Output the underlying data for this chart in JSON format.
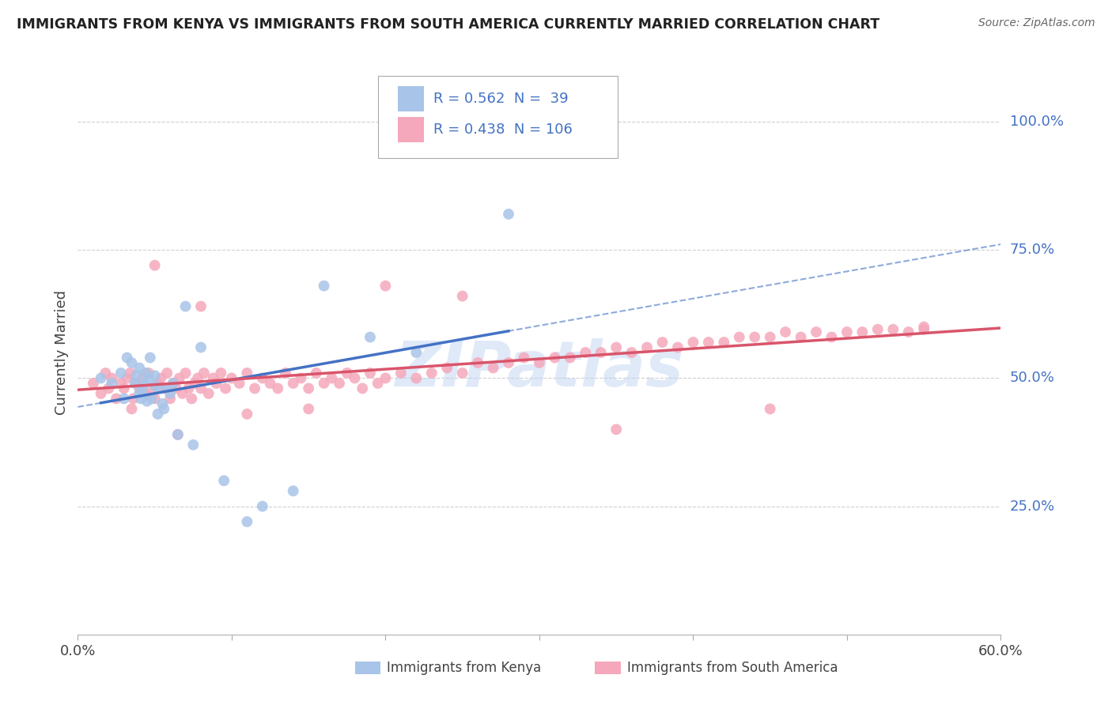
{
  "title": "IMMIGRANTS FROM KENYA VS IMMIGRANTS FROM SOUTH AMERICA CURRENTLY MARRIED CORRELATION CHART",
  "source": "Source: ZipAtlas.com",
  "ylabel": "Currently Married",
  "xlim": [
    0.0,
    0.6
  ],
  "ylim": [
    0.0,
    1.1
  ],
  "xticks": [
    0.0,
    0.1,
    0.2,
    0.3,
    0.4,
    0.5,
    0.6
  ],
  "xtick_labels": [
    "0.0%",
    "",
    "",
    "",
    "",
    "",
    "60.0%"
  ],
  "ytick_positions": [
    0.25,
    0.5,
    0.75,
    1.0
  ],
  "ytick_labels": [
    "25.0%",
    "50.0%",
    "75.0%",
    "100.0%"
  ],
  "kenya_color": "#a8c4e8",
  "sa_color": "#f5a8bb",
  "kenya_line_color": "#4472c4",
  "sa_line_color": "#d9556b",
  "kenya_R": 0.562,
  "kenya_N": 39,
  "sa_R": 0.438,
  "sa_N": 106,
  "watermark": "ZIPatlas",
  "watermark_color": "#b8d0f0",
  "kenya_scatter_x": [
    0.015,
    0.022,
    0.028,
    0.03,
    0.032,
    0.035,
    0.037,
    0.038,
    0.04,
    0.04,
    0.041,
    0.042,
    0.043,
    0.044,
    0.045,
    0.046,
    0.047,
    0.048,
    0.05,
    0.05,
    0.052,
    0.053,
    0.055,
    0.056,
    0.058,
    0.06,
    0.062,
    0.065,
    0.07,
    0.075,
    0.08,
    0.095,
    0.11,
    0.12,
    0.14,
    0.16,
    0.19,
    0.22,
    0.28
  ],
  "kenya_scatter_y": [
    0.5,
    0.49,
    0.51,
    0.46,
    0.54,
    0.53,
    0.49,
    0.505,
    0.47,
    0.52,
    0.46,
    0.475,
    0.49,
    0.51,
    0.455,
    0.5,
    0.54,
    0.46,
    0.485,
    0.505,
    0.43,
    0.48,
    0.45,
    0.44,
    0.48,
    0.47,
    0.49,
    0.39,
    0.64,
    0.37,
    0.56,
    0.3,
    0.22,
    0.25,
    0.28,
    0.68,
    0.58,
    0.55,
    0.82
  ],
  "sa_scatter_x": [
    0.01,
    0.015,
    0.018,
    0.02,
    0.022,
    0.025,
    0.028,
    0.03,
    0.032,
    0.034,
    0.036,
    0.038,
    0.04,
    0.042,
    0.044,
    0.046,
    0.048,
    0.05,
    0.052,
    0.054,
    0.056,
    0.058,
    0.06,
    0.062,
    0.064,
    0.066,
    0.068,
    0.07,
    0.072,
    0.074,
    0.076,
    0.078,
    0.08,
    0.082,
    0.085,
    0.088,
    0.09,
    0.093,
    0.096,
    0.1,
    0.105,
    0.11,
    0.115,
    0.12,
    0.125,
    0.13,
    0.135,
    0.14,
    0.145,
    0.15,
    0.155,
    0.16,
    0.165,
    0.17,
    0.175,
    0.18,
    0.185,
    0.19,
    0.195,
    0.2,
    0.21,
    0.22,
    0.23,
    0.24,
    0.25,
    0.26,
    0.27,
    0.28,
    0.29,
    0.3,
    0.31,
    0.32,
    0.33,
    0.34,
    0.35,
    0.36,
    0.37,
    0.38,
    0.39,
    0.4,
    0.41,
    0.42,
    0.43,
    0.44,
    0.45,
    0.46,
    0.47,
    0.48,
    0.49,
    0.5,
    0.51,
    0.52,
    0.53,
    0.54,
    0.55,
    0.05,
    0.08,
    0.11,
    0.15,
    0.2,
    0.25,
    0.35,
    0.45,
    0.55,
    0.035,
    0.065
  ],
  "sa_scatter_y": [
    0.49,
    0.47,
    0.51,
    0.48,
    0.5,
    0.46,
    0.49,
    0.48,
    0.5,
    0.51,
    0.46,
    0.49,
    0.48,
    0.5,
    0.47,
    0.51,
    0.48,
    0.46,
    0.49,
    0.5,
    0.48,
    0.51,
    0.46,
    0.49,
    0.48,
    0.5,
    0.47,
    0.51,
    0.48,
    0.46,
    0.49,
    0.5,
    0.48,
    0.51,
    0.47,
    0.5,
    0.49,
    0.51,
    0.48,
    0.5,
    0.49,
    0.51,
    0.48,
    0.5,
    0.49,
    0.48,
    0.51,
    0.49,
    0.5,
    0.48,
    0.51,
    0.49,
    0.5,
    0.49,
    0.51,
    0.5,
    0.48,
    0.51,
    0.49,
    0.5,
    0.51,
    0.5,
    0.51,
    0.52,
    0.51,
    0.53,
    0.52,
    0.53,
    0.54,
    0.53,
    0.54,
    0.54,
    0.55,
    0.55,
    0.56,
    0.55,
    0.56,
    0.57,
    0.56,
    0.57,
    0.57,
    0.57,
    0.58,
    0.58,
    0.58,
    0.59,
    0.58,
    0.59,
    0.58,
    0.59,
    0.59,
    0.595,
    0.595,
    0.59,
    0.595,
    0.72,
    0.64,
    0.43,
    0.44,
    0.68,
    0.66,
    0.4,
    0.44,
    0.6,
    0.44,
    0.39
  ]
}
